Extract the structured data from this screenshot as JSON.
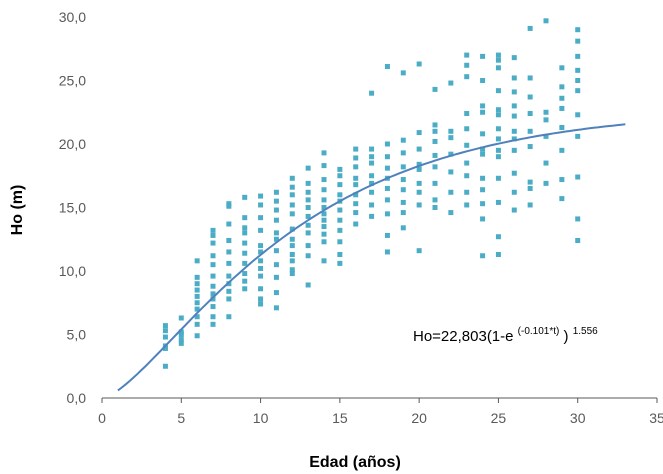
{
  "chart_data": {
    "type": "scatter",
    "title": "",
    "xlabel": "Edad (años)",
    "ylabel": "Ho (m)",
    "xlim": [
      0,
      35
    ],
    "ylim": [
      0,
      30
    ],
    "x_ticks": [
      0,
      5,
      10,
      15,
      20,
      25,
      30,
      35
    ],
    "y_ticks": [
      0,
      5,
      10,
      15,
      20,
      25,
      30
    ],
    "x_tick_labels": [
      "0",
      "5",
      "10",
      "15",
      "20",
      "25",
      "30",
      "35"
    ],
    "y_tick_labels": [
      "0,0",
      "5,0",
      "10,0",
      "15,0",
      "20,0",
      "25,0",
      "30,0"
    ],
    "grid": false,
    "legend": "none",
    "colors": {
      "points": "#4BACC6",
      "curve": "#4F81BD",
      "axis": "#595959"
    },
    "equation": {
      "prefix": "Ho=22,803(1-e",
      "exponent_inner": "(-0.101*t)",
      "close": ")",
      "exponent_outer": "1.556"
    },
    "series": [
      {
        "type": "scatter",
        "points": [
          [
            4,
            2.5
          ],
          [
            4,
            3.9
          ],
          [
            4,
            4.1
          ],
          [
            4,
            4.8
          ],
          [
            4,
            5.3
          ],
          [
            4,
            5.7
          ],
          [
            5,
            4.3
          ],
          [
            5,
            4.6
          ],
          [
            5,
            5.0
          ],
          [
            5,
            5.2
          ],
          [
            5,
            6.3
          ],
          [
            6,
            4.9
          ],
          [
            6,
            5.8
          ],
          [
            6,
            6.4
          ],
          [
            6,
            7.0
          ],
          [
            6,
            7.5
          ],
          [
            6,
            8.0
          ],
          [
            6,
            8.5
          ],
          [
            6,
            9.0
          ],
          [
            6,
            9.5
          ],
          [
            6,
            10.8
          ],
          [
            7,
            5.8
          ],
          [
            7,
            6.4
          ],
          [
            7,
            7.2
          ],
          [
            7,
            7.8
          ],
          [
            7,
            8.2
          ],
          [
            7,
            8.8
          ],
          [
            7,
            9.6
          ],
          [
            7,
            10.5
          ],
          [
            7,
            11.2
          ],
          [
            7,
            12.2
          ],
          [
            7,
            12.8
          ],
          [
            7,
            13.2
          ],
          [
            8,
            6.4
          ],
          [
            8,
            7.8
          ],
          [
            8,
            8.4
          ],
          [
            8,
            9.0
          ],
          [
            8,
            9.6
          ],
          [
            8,
            10.6
          ],
          [
            8,
            11.5
          ],
          [
            8,
            12.4
          ],
          [
            8,
            13.7
          ],
          [
            8,
            15.1
          ],
          [
            8,
            15.3
          ],
          [
            9,
            8.6
          ],
          [
            9,
            9.2
          ],
          [
            9,
            9.8
          ],
          [
            9,
            10.6
          ],
          [
            9,
            11.4
          ],
          [
            9,
            12.2
          ],
          [
            9,
            13.0
          ],
          [
            9,
            13.4
          ],
          [
            9,
            14.2
          ],
          [
            9,
            15.8
          ],
          [
            10,
            7.4
          ],
          [
            10,
            7.8
          ],
          [
            10,
            8.6
          ],
          [
            10,
            9.6
          ],
          [
            10,
            10.2
          ],
          [
            10,
            10.8
          ],
          [
            10,
            11.5
          ],
          [
            10,
            12.0
          ],
          [
            10,
            13.2
          ],
          [
            10,
            14.2
          ],
          [
            10,
            15.2
          ],
          [
            10,
            15.9
          ],
          [
            11,
            7.1
          ],
          [
            11,
            8.3
          ],
          [
            11,
            9.5
          ],
          [
            11,
            10.5
          ],
          [
            11,
            11.6
          ],
          [
            11,
            12.5
          ],
          [
            11,
            13.0
          ],
          [
            11,
            14.0
          ],
          [
            11,
            14.8
          ],
          [
            11,
            15.5
          ],
          [
            11,
            16.2
          ],
          [
            12,
            9.8
          ],
          [
            12,
            10.1
          ],
          [
            12,
            10.8
          ],
          [
            12,
            11.3
          ],
          [
            12,
            12.0
          ],
          [
            12,
            12.5
          ],
          [
            12,
            13.3
          ],
          [
            12,
            14.5
          ],
          [
            12,
            15.2
          ],
          [
            12,
            16.0
          ],
          [
            12,
            16.6
          ],
          [
            12,
            17.3
          ],
          [
            13,
            8.9
          ],
          [
            13,
            11.2
          ],
          [
            13,
            12.0
          ],
          [
            13,
            13.0
          ],
          [
            13,
            13.6
          ],
          [
            13,
            14.3
          ],
          [
            13,
            15.0
          ],
          [
            13,
            15.6
          ],
          [
            13,
            16.2
          ],
          [
            13,
            16.9
          ],
          [
            13,
            18.1
          ],
          [
            14,
            10.8
          ],
          [
            14,
            12.3
          ],
          [
            14,
            12.9
          ],
          [
            14,
            13.5
          ],
          [
            14,
            14.0
          ],
          [
            14,
            14.5
          ],
          [
            14,
            15.0
          ],
          [
            14,
            15.6
          ],
          [
            14,
            16.4
          ],
          [
            14,
            17.2
          ],
          [
            14,
            18.3
          ],
          [
            14,
            19.3
          ],
          [
            15,
            10.6
          ],
          [
            15,
            11.3
          ],
          [
            15,
            12.3
          ],
          [
            15,
            13.2
          ],
          [
            15,
            14.0
          ],
          [
            15,
            14.8
          ],
          [
            15,
            15.5
          ],
          [
            15,
            16.0
          ],
          [
            15,
            16.8
          ],
          [
            15,
            17.5
          ],
          [
            15,
            18.0
          ],
          [
            16,
            13.7
          ],
          [
            16,
            14.6
          ],
          [
            16,
            15.3
          ],
          [
            16,
            16.0
          ],
          [
            16,
            16.8
          ],
          [
            16,
            17.3
          ],
          [
            16,
            18.2
          ],
          [
            16,
            18.9
          ],
          [
            16,
            19.6
          ],
          [
            17,
            14.3
          ],
          [
            17,
            15.2
          ],
          [
            17,
            16.2
          ],
          [
            17,
            16.9
          ],
          [
            17,
            17.5
          ],
          [
            17,
            18.5
          ],
          [
            17,
            19.0
          ],
          [
            17,
            19.6
          ],
          [
            17,
            24.0
          ],
          [
            18,
            11.5
          ],
          [
            18,
            12.8
          ],
          [
            18,
            14.5
          ],
          [
            18,
            15.6
          ],
          [
            18,
            16.5
          ],
          [
            18,
            17.3
          ],
          [
            18,
            18.1
          ],
          [
            18,
            19.0
          ],
          [
            18,
            20.0
          ],
          [
            18,
            26.1
          ],
          [
            19,
            13.4
          ],
          [
            19,
            14.6
          ],
          [
            19,
            15.4
          ],
          [
            19,
            16.4
          ],
          [
            19,
            17.2
          ],
          [
            19,
            18.2
          ],
          [
            19,
            19.3
          ],
          [
            19,
            20.3
          ],
          [
            19,
            25.6
          ],
          [
            20,
            11.6
          ],
          [
            20,
            15.2
          ],
          [
            20,
            16.2
          ],
          [
            20,
            16.9
          ],
          [
            20,
            18.0
          ],
          [
            20,
            18.4
          ],
          [
            20,
            19.6
          ],
          [
            20,
            20.9
          ],
          [
            20,
            26.3
          ],
          [
            21,
            15.0
          ],
          [
            21,
            15.6
          ],
          [
            21,
            16.9
          ],
          [
            21,
            18.2
          ],
          [
            21,
            19.1
          ],
          [
            21,
            20.2
          ],
          [
            21,
            21.0
          ],
          [
            21,
            21.5
          ],
          [
            21,
            24.3
          ],
          [
            22,
            14.6
          ],
          [
            22,
            16.2
          ],
          [
            22,
            17.8
          ],
          [
            22,
            19.2
          ],
          [
            22,
            20.5
          ],
          [
            22,
            21.0
          ],
          [
            22,
            24.8
          ],
          [
            23,
            15.2
          ],
          [
            23,
            16.2
          ],
          [
            23,
            17.5
          ],
          [
            23,
            18.5
          ],
          [
            23,
            19.9
          ],
          [
            23,
            21.2
          ],
          [
            23,
            22.4
          ],
          [
            23,
            25.3
          ],
          [
            23,
            26.2
          ],
          [
            23,
            27.0
          ],
          [
            24,
            11.2
          ],
          [
            24,
            14.1
          ],
          [
            24,
            15.3
          ],
          [
            24,
            16.4
          ],
          [
            24,
            17.3
          ],
          [
            24,
            19.2
          ],
          [
            24,
            19.6
          ],
          [
            24,
            20.8
          ],
          [
            24,
            22.5
          ],
          [
            24,
            23.0
          ],
          [
            24,
            25.0
          ],
          [
            24,
            26.9
          ],
          [
            25,
            11.3
          ],
          [
            25,
            12.7
          ],
          [
            25,
            15.4
          ],
          [
            25,
            17.3
          ],
          [
            25,
            19.0
          ],
          [
            25,
            19.5
          ],
          [
            25,
            20.4
          ],
          [
            25,
            21.2
          ],
          [
            25,
            22.3
          ],
          [
            25,
            22.7
          ],
          [
            25,
            24.2
          ],
          [
            25,
            26.0
          ],
          [
            25,
            26.6
          ],
          [
            25,
            27.0
          ],
          [
            26,
            14.8
          ],
          [
            26,
            16.2
          ],
          [
            26,
            17.7
          ],
          [
            26,
            19.5
          ],
          [
            26,
            20.4
          ],
          [
            26,
            21.0
          ],
          [
            26,
            22.2
          ],
          [
            26,
            23.0
          ],
          [
            26,
            24.1
          ],
          [
            26,
            25.2
          ],
          [
            26,
            26.8
          ],
          [
            27,
            15.2
          ],
          [
            27,
            16.5
          ],
          [
            27,
            17.0
          ],
          [
            27,
            19.8
          ],
          [
            27,
            21.0
          ],
          [
            27,
            22.4
          ],
          [
            27,
            23.7
          ],
          [
            27,
            25.2
          ],
          [
            27,
            29.1
          ],
          [
            28,
            16.9
          ],
          [
            28,
            18.5
          ],
          [
            28,
            20.6
          ],
          [
            28,
            21.9
          ],
          [
            28,
            22.5
          ],
          [
            28,
            29.7
          ],
          [
            29,
            15.7
          ],
          [
            29,
            17.2
          ],
          [
            29,
            19.5
          ],
          [
            29,
            21.3
          ],
          [
            29,
            22.8
          ],
          [
            29,
            23.6
          ],
          [
            29,
            24.5
          ],
          [
            29,
            26.0
          ],
          [
            30,
            12.4
          ],
          [
            30,
            14.1
          ],
          [
            30,
            17.4
          ],
          [
            30,
            20.6
          ],
          [
            30,
            22.3
          ],
          [
            30,
            24.2
          ],
          [
            30,
            25.0
          ],
          [
            30,
            25.8
          ],
          [
            30,
            26.9
          ],
          [
            30,
            28.1
          ],
          [
            30,
            29.0
          ]
        ]
      },
      {
        "type": "line",
        "function": "Ho=22.803*(1-exp(-0.101*t))^1.556",
        "x_range": [
          1,
          33
        ]
      }
    ]
  }
}
